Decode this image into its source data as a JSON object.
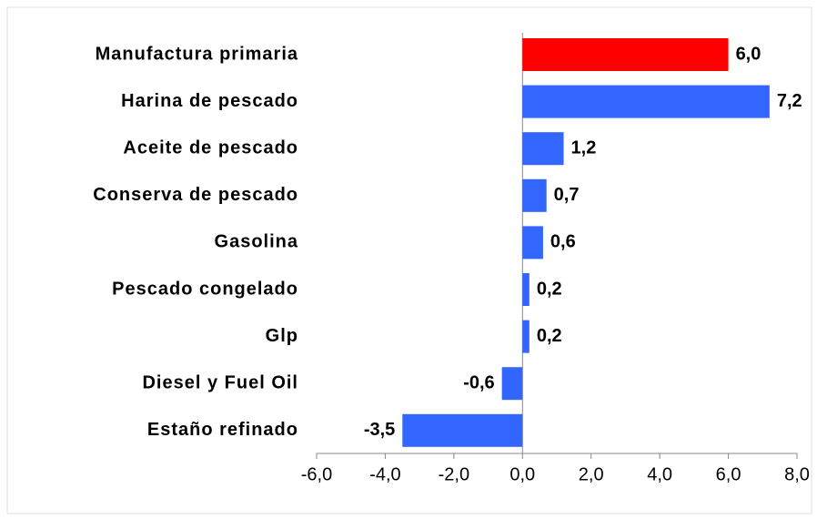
{
  "chart_data": {
    "type": "barh",
    "categories": [
      "Manufactura primaria",
      "Harina de pescado",
      "Aceite de pescado",
      "Conserva de pescado",
      "Gasolina",
      "Pescado congelado",
      "Glp",
      "Diesel y Fuel Oil",
      "Estaño refinado"
    ],
    "values": [
      6.0,
      7.2,
      1.2,
      0.7,
      0.6,
      0.2,
      0.2,
      -0.6,
      -3.5
    ],
    "value_labels": [
      "6,0",
      "7,2",
      "1,2",
      "0,7",
      "0,6",
      "0,2",
      "0,2",
      "-0,6",
      "-3,5"
    ],
    "colors": [
      "#ff0000",
      "#3366ff",
      "#3366ff",
      "#3366ff",
      "#3366ff",
      "#3366ff",
      "#3366ff",
      "#3366ff",
      "#3366ff"
    ],
    "xlim": [
      -6,
      8
    ],
    "xticks": [
      {
        "value": -6,
        "label": "-6,0"
      },
      {
        "value": -4,
        "label": "-4,0"
      },
      {
        "value": -2,
        "label": "-2,0"
      },
      {
        "value": 0,
        "label": "0,0"
      },
      {
        "value": 2,
        "label": "2,0"
      },
      {
        "value": 4,
        "label": "4,0"
      },
      {
        "value": 6,
        "label": "6,0"
      },
      {
        "value": 8,
        "label": "8,0"
      }
    ],
    "grid": false
  }
}
